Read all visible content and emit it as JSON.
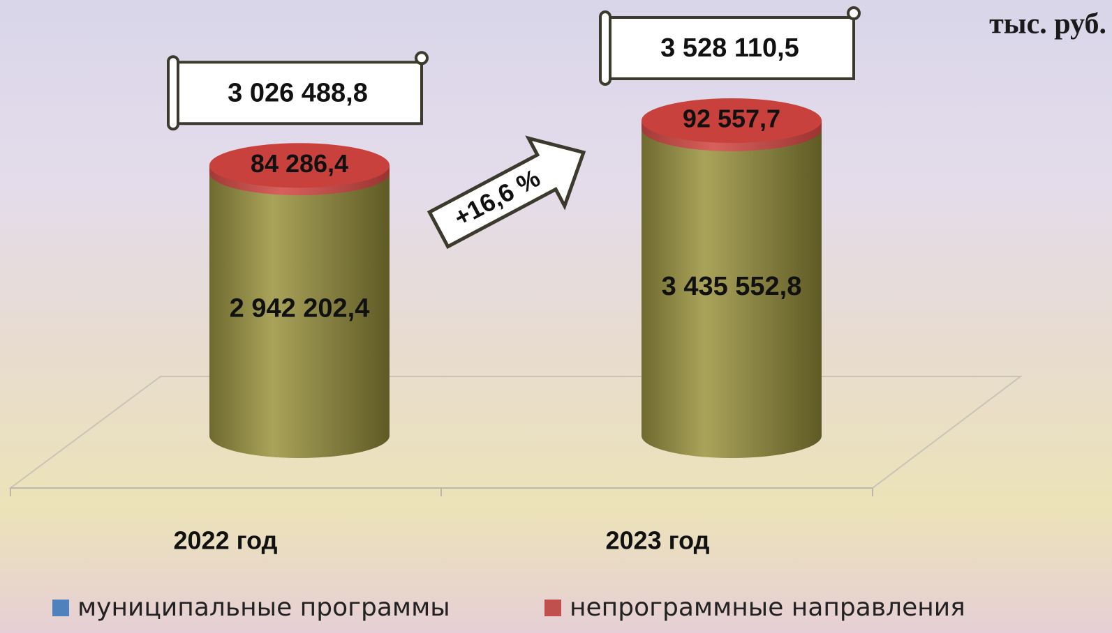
{
  "chart_data": {
    "type": "cylinder",
    "unit": "тыс. руб.",
    "categories": [
      "2022 год",
      "2023 год"
    ],
    "series": [
      {
        "name": "муниципальные программы",
        "color": "#4f81bd",
        "body_color": "#8c8642",
        "values": [
          2942202.4,
          3435552.8
        ],
        "value_labels": [
          "2 942 202,4",
          "3 435 552,8"
        ]
      },
      {
        "name": "непрограммные направления",
        "color": "#c0504d",
        "values": [
          84286.4,
          92557.7
        ],
        "value_labels": [
          "84 286,4",
          "92 557,7"
        ]
      }
    ],
    "totals": {
      "values": [
        3026488.8,
        3528110.5
      ],
      "value_labels": [
        "3 026 488,8",
        "3 528 110,5"
      ]
    },
    "annotation": "+16,6 %"
  }
}
